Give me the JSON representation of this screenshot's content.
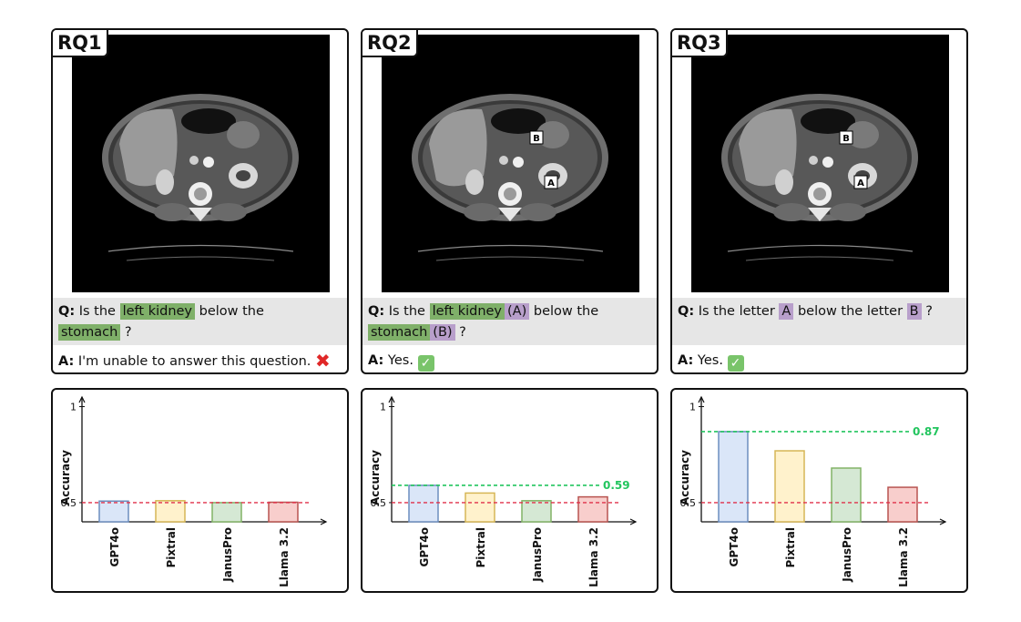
{
  "colors": {
    "gpt4o": {
      "fill": "#dae6f8",
      "stroke": "#6c8ebf"
    },
    "pixtral": {
      "fill": "#fff2cc",
      "stroke": "#d6b656"
    },
    "januspro": {
      "fill": "#d5e8d4",
      "stroke": "#82b366"
    },
    "llama": {
      "fill": "#f8cecc",
      "stroke": "#b85450"
    },
    "baseline": "#e0304a",
    "highlight_line": "#22c55e",
    "organ_highlight": "#7fb069",
    "letter_highlight": "#b89fcb"
  },
  "panels": [
    {
      "label": "RQ1",
      "markers": [],
      "question": {
        "q_label": "Q:",
        "t1": "Is the",
        "organ1": "left kidney",
        "tag1": "",
        "t2": "below the",
        "organ2": "stomach",
        "tag2": "",
        "t3": "?"
      },
      "answer": {
        "a_label": "A:",
        "text": "I'm unable to answer this question.",
        "icon": "cross-mark-icon"
      }
    },
    {
      "label": "RQ2",
      "markers": [
        "A",
        "B"
      ],
      "question": {
        "q_label": "Q:",
        "t1": "Is the",
        "organ1": "left kidney",
        "tag1": "(A)",
        "t2": "below the",
        "organ2": "stomach",
        "tag2": "(B)",
        "t3": "?"
      },
      "answer": {
        "a_label": "A:",
        "text": "Yes.",
        "icon": "check-mark-icon"
      }
    },
    {
      "label": "RQ3",
      "markers": [
        "A",
        "B"
      ],
      "question": {
        "q_label": "Q:",
        "t1": "Is the letter",
        "letter1": "A",
        "t2": "below the letter",
        "letter2": "B",
        "t3": "?"
      },
      "answer": {
        "a_label": "A:",
        "text": "Yes.",
        "icon": "check-mark-icon"
      }
    }
  ],
  "chart_data": [
    {
      "type": "bar",
      "categories": [
        "GPT4o",
        "Pixtral",
        "JanusPro",
        "Llama 3.2"
      ],
      "values": [
        0.508,
        0.51,
        0.5,
        0.502
      ],
      "ylabel": "Accuracy",
      "ylim": [
        0.4,
        1.05
      ],
      "yticks": [
        "1",
        "0.5"
      ],
      "baseline": 0.5,
      "highlight": null,
      "grid": false
    },
    {
      "type": "bar",
      "categories": [
        "GPT4o",
        "Pixtral",
        "JanusPro",
        "Llama 3.2"
      ],
      "values": [
        0.59,
        0.55,
        0.51,
        0.53
      ],
      "ylabel": "Accuracy",
      "ylim": [
        0.4,
        1.05
      ],
      "yticks": [
        "1",
        "0.5"
      ],
      "baseline": 0.5,
      "highlight": {
        "value": 0.59,
        "label": "0.59"
      },
      "grid": false
    },
    {
      "type": "bar",
      "categories": [
        "GPT4o",
        "Pixtral",
        "JanusPro",
        "Llama 3.2"
      ],
      "values": [
        0.87,
        0.77,
        0.68,
        0.58
      ],
      "ylabel": "Accuracy",
      "ylim": [
        0.4,
        1.05
      ],
      "yticks": [
        "1",
        "0.5"
      ],
      "baseline": 0.5,
      "highlight": {
        "value": 0.87,
        "label": "0.87"
      },
      "grid": false
    }
  ]
}
